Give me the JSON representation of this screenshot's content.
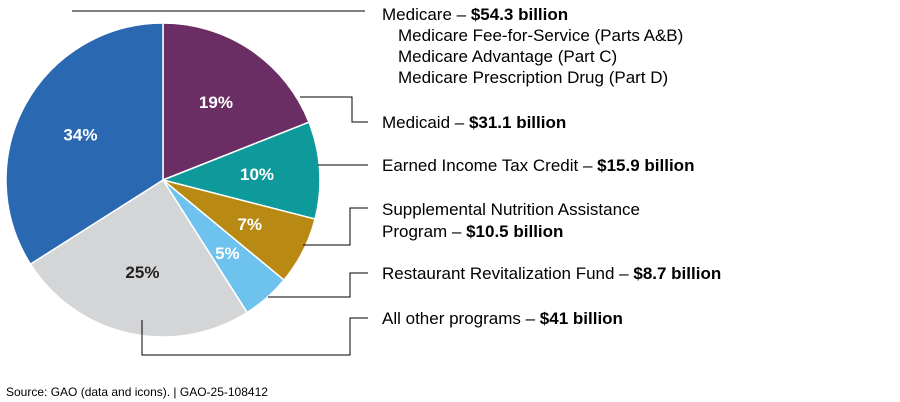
{
  "chart_data": {
    "type": "pie",
    "title": "",
    "slices": [
      {
        "label": "Medicare",
        "value_text": "$54.3 billion",
        "percent": 34,
        "percent_label": "34%",
        "color": "#2a69b2",
        "percent_color": "#ffffff"
      },
      {
        "label": "Medicaid",
        "value_text": "$31.1 billion",
        "percent": 19,
        "percent_label": "19%",
        "color": "#6a2e64",
        "percent_color": "#ffffff"
      },
      {
        "label": "Earned Income Tax Credit",
        "value_text": "$15.9 billion",
        "percent": 10,
        "percent_label": "10%",
        "color": "#0e9a9a",
        "percent_color": "#ffffff"
      },
      {
        "label": "Supplemental Nutrition Assistance Program",
        "value_text": "$10.5 billion",
        "percent": 7,
        "percent_label": "7%",
        "color": "#b88a14",
        "percent_color": "#ffffff"
      },
      {
        "label": "Restaurant Revitalization Fund",
        "value_text": "$8.7 billion",
        "percent": 5,
        "percent_label": "5%",
        "color": "#6dc3ee",
        "percent_color": "#ffffff"
      },
      {
        "label": "All other programs",
        "value_text": "$41 billion",
        "percent": 25,
        "percent_label": "25%",
        "color": "#d4d5d7",
        "percent_color": "#222222"
      }
    ],
    "medicare_parts": [
      "Medicare Fee-for-Service (Parts A&B)",
      "Medicare Advantage (Part C)",
      "Medicare Prescription Drug (Part D)"
    ]
  },
  "labels": {
    "medicare": {
      "name": "Medicare – ",
      "value": "$54.3 billion"
    },
    "medicaid": {
      "name": "Medicaid – ",
      "value": "$31.1 billion"
    },
    "eitc": {
      "name": "Earned Income Tax Credit – ",
      "value": "$15.9 billion"
    },
    "snap": {
      "line1": "Supplemental Nutrition Assistance",
      "line2": "Program – ",
      "value": "$10.5 billion"
    },
    "rrf": {
      "name": "Restaurant Revitalization Fund – ",
      "value": "$8.7 billion"
    },
    "other": {
      "name": "All other programs – ",
      "value": "$41 billion"
    }
  },
  "source": "Source: GAO (data and icons).  |  GAO-25-108412"
}
